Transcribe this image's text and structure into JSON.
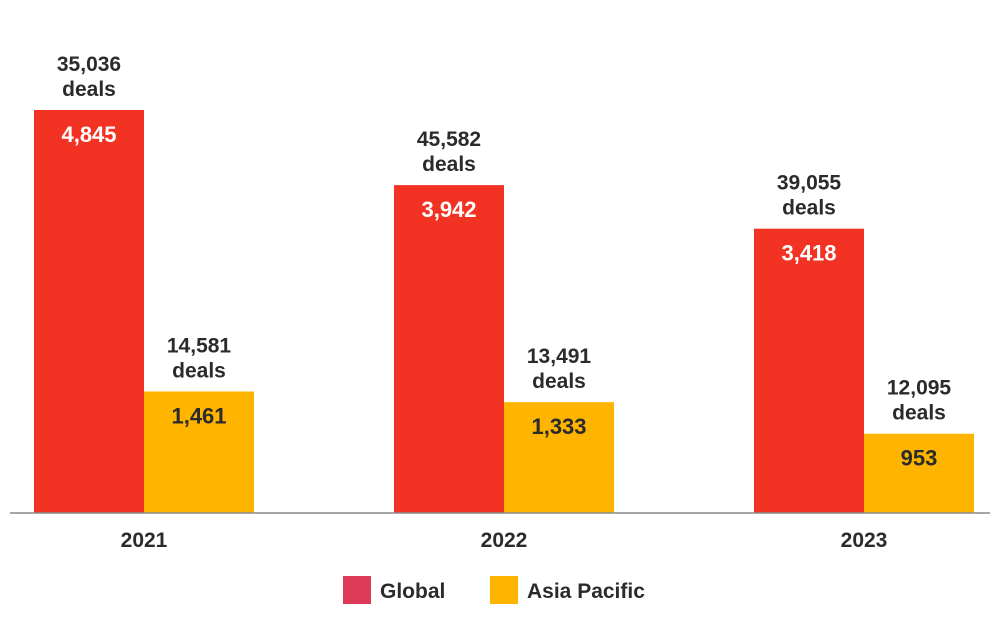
{
  "chart_data": {
    "type": "bar",
    "categories": [
      "2021",
      "2022",
      "2023"
    ],
    "series": [
      {
        "name": "Global",
        "values": [
          4845,
          3942,
          3418
        ],
        "value_labels": [
          "4,845",
          "3,942",
          "3,418"
        ],
        "deal_labels": [
          [
            "35,036",
            "deals"
          ],
          [
            "45,582",
            "deals"
          ],
          [
            "39,055",
            "deals"
          ]
        ],
        "bar_color": "#f23222",
        "legend_color": "#dc3a56"
      },
      {
        "name": "Asia Pacific",
        "values": [
          1461,
          1333,
          953
        ],
        "value_labels": [
          "1,461",
          "1,333",
          "953"
        ],
        "deal_labels": [
          [
            "14,581",
            "deals"
          ],
          [
            "13,491",
            "deals"
          ],
          [
            "12,095",
            "deals"
          ]
        ],
        "bar_color": "#ffb400",
        "legend_color": "#ffb400"
      }
    ],
    "title": "",
    "xlabel": "",
    "ylabel": "",
    "ylim": [
      0,
      5400
    ],
    "grid": false,
    "legend": "bottom-center",
    "inner_label_colors": [
      "#ffffff",
      "#2b2b2b"
    ],
    "text_color": "#2b2b2b",
    "axis_color": "#8a8a8a"
  }
}
